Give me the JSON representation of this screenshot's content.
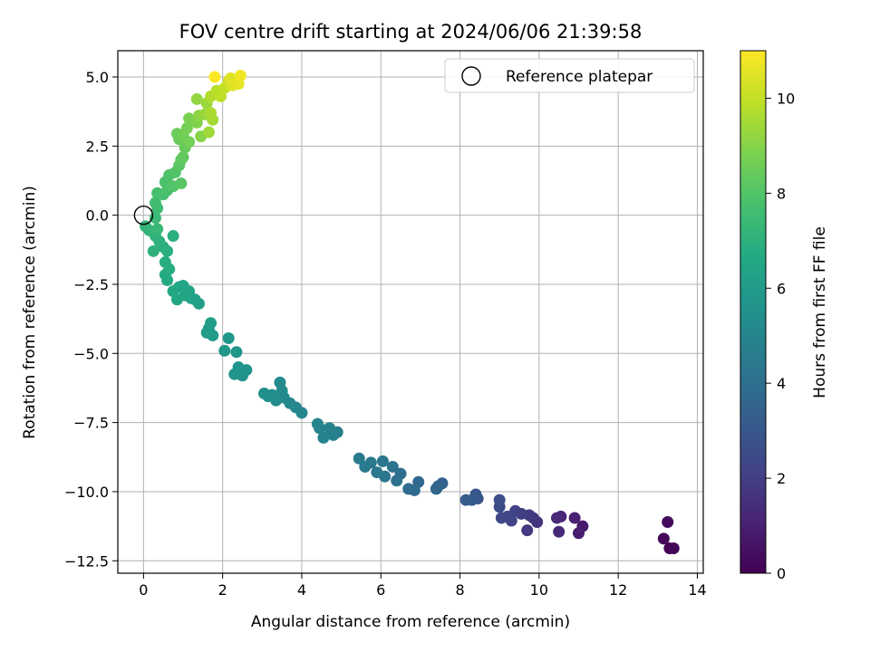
{
  "chart_data": {
    "type": "scatter",
    "title": "FOV centre drift starting at 2024/06/06 21:39:58",
    "xlabel": "Angular distance from reference (arcmin)",
    "ylabel": "Rotation from reference (arcmin)",
    "xlim": [
      -0.65,
      14.15
    ],
    "ylim": [
      -12.95,
      5.95
    ],
    "x_ticks": [
      0,
      2,
      4,
      6,
      8,
      10,
      12,
      14
    ],
    "x_tick_labels": [
      "0",
      "2",
      "4",
      "6",
      "8",
      "10",
      "12",
      "14"
    ],
    "y_ticks": [
      5,
      2.5,
      0,
      -2.5,
      -5,
      -7.5,
      -10,
      -12.5
    ],
    "y_tick_labels": [
      "5.0",
      "2.5",
      "0.0",
      "−2.5",
      "−5.0",
      "−7.5",
      "−10.0",
      "−12.5"
    ],
    "grid": true,
    "legend": {
      "position": "top-right",
      "entries": [
        "Reference platepar"
      ]
    },
    "reference_point": {
      "x": 0,
      "y": 0
    },
    "colorbar": {
      "label": "Hours from first FF file",
      "colormap": "viridis",
      "range": [
        0,
        11
      ],
      "ticks": [
        0,
        2,
        4,
        6,
        8,
        10
      ],
      "tick_labels": [
        "0",
        "2",
        "4",
        "6",
        "8",
        "10"
      ]
    },
    "points": [
      [
        13.3,
        -12.05,
        0.0
      ],
      [
        13.4,
        -12.05,
        0.1
      ],
      [
        13.15,
        -11.7,
        0.2
      ],
      [
        13.25,
        -11.1,
        0.3
      ],
      [
        11.1,
        -11.25,
        0.8
      ],
      [
        11.0,
        -11.5,
        0.9
      ],
      [
        10.9,
        -10.95,
        1.0
      ],
      [
        10.55,
        -10.9,
        1.1
      ],
      [
        10.5,
        -11.45,
        1.2
      ],
      [
        10.45,
        -10.95,
        1.3
      ],
      [
        9.95,
        -11.1,
        1.6
      ],
      [
        9.85,
        -10.95,
        1.7
      ],
      [
        9.7,
        -11.4,
        1.8
      ],
      [
        9.75,
        -10.85,
        1.9
      ],
      [
        9.55,
        -10.8,
        2.0
      ],
      [
        9.4,
        -10.7,
        2.1
      ],
      [
        9.3,
        -11.05,
        2.2
      ],
      [
        9.2,
        -10.9,
        2.3
      ],
      [
        9.05,
        -10.95,
        2.4
      ],
      [
        9.0,
        -10.55,
        2.5
      ],
      [
        9.0,
        -10.3,
        2.6
      ],
      [
        8.45,
        -10.25,
        2.9
      ],
      [
        8.4,
        -10.1,
        3.0
      ],
      [
        8.3,
        -10.3,
        3.1
      ],
      [
        8.15,
        -10.3,
        3.2
      ],
      [
        7.55,
        -9.7,
        3.4
      ],
      [
        7.45,
        -9.8,
        3.5
      ],
      [
        7.4,
        -9.9,
        3.6
      ],
      [
        6.95,
        -9.65,
        3.7
      ],
      [
        6.85,
        -9.95,
        3.8
      ],
      [
        6.7,
        -9.9,
        3.9
      ],
      [
        6.5,
        -9.35,
        4.0
      ],
      [
        6.4,
        -9.6,
        4.1
      ],
      [
        6.3,
        -9.1,
        4.2
      ],
      [
        6.1,
        -9.45,
        4.3
      ],
      [
        6.05,
        -8.9,
        4.35
      ],
      [
        5.9,
        -9.3,
        4.4
      ],
      [
        5.75,
        -8.95,
        4.45
      ],
      [
        5.6,
        -9.1,
        4.5
      ],
      [
        5.45,
        -8.8,
        4.55
      ],
      [
        4.9,
        -7.85,
        4.7
      ],
      [
        4.8,
        -7.95,
        4.75
      ],
      [
        4.7,
        -7.7,
        4.8
      ],
      [
        4.55,
        -8.05,
        4.85
      ],
      [
        4.45,
        -7.7,
        4.9
      ],
      [
        4.4,
        -7.55,
        4.95
      ],
      [
        4.0,
        -7.15,
        5.0
      ],
      [
        3.85,
        -6.95,
        5.05
      ],
      [
        3.7,
        -6.8,
        5.1
      ],
      [
        3.55,
        -6.6,
        5.15
      ],
      [
        3.5,
        -6.35,
        5.2
      ],
      [
        3.45,
        -6.05,
        5.25
      ],
      [
        3.35,
        -6.7,
        5.3
      ],
      [
        3.25,
        -6.5,
        5.35
      ],
      [
        3.15,
        -6.55,
        5.4
      ],
      [
        3.05,
        -6.45,
        5.45
      ],
      [
        2.6,
        -5.6,
        5.55
      ],
      [
        2.5,
        -5.8,
        5.6
      ],
      [
        2.4,
        -5.5,
        5.65
      ],
      [
        2.3,
        -5.75,
        5.7
      ],
      [
        2.35,
        -4.95,
        5.75
      ],
      [
        2.15,
        -4.45,
        5.8
      ],
      [
        2.05,
        -4.9,
        5.85
      ],
      [
        1.75,
        -4.35,
        5.95
      ],
      [
        1.65,
        -4.1,
        6.0
      ],
      [
        1.7,
        -3.9,
        6.05
      ],
      [
        1.6,
        -4.25,
        6.1
      ],
      [
        1.4,
        -3.2,
        6.2
      ],
      [
        1.3,
        -3.05,
        6.25
      ],
      [
        1.2,
        -3.0,
        6.3
      ],
      [
        1.15,
        -2.75,
        6.35
      ],
      [
        1.05,
        -2.9,
        6.4
      ],
      [
        1.0,
        -2.55,
        6.45
      ],
      [
        0.9,
        -2.6,
        6.5
      ],
      [
        0.85,
        -3.05,
        6.55
      ],
      [
        0.75,
        -2.75,
        6.6
      ],
      [
        0.6,
        -2.35,
        6.65
      ],
      [
        0.55,
        -2.15,
        6.7
      ],
      [
        0.65,
        -1.95,
        6.75
      ],
      [
        0.55,
        -1.7,
        6.8
      ],
      [
        0.6,
        -1.3,
        6.85
      ],
      [
        0.75,
        -0.75,
        6.9
      ],
      [
        0.5,
        -1.15,
        6.95
      ],
      [
        0.4,
        -0.95,
        7.0
      ],
      [
        0.25,
        -1.3,
        7.05
      ],
      [
        0.3,
        -0.75,
        7.1
      ],
      [
        0.15,
        -0.55,
        7.15
      ],
      [
        0.05,
        -0.4,
        7.2
      ],
      [
        0.35,
        -0.5,
        7.3
      ],
      [
        0.3,
        -0.1,
        7.4
      ],
      [
        0.35,
        0.25,
        7.5
      ],
      [
        0.3,
        0.45,
        7.6
      ],
      [
        0.35,
        0.8,
        7.7
      ],
      [
        0.5,
        0.75,
        7.75
      ],
      [
        0.6,
        0.9,
        7.8
      ],
      [
        0.55,
        1.2,
        7.85
      ],
      [
        0.65,
        1.45,
        7.9
      ],
      [
        0.8,
        1.55,
        7.95
      ],
      [
        0.75,
        1.05,
        8.0
      ],
      [
        0.95,
        1.15,
        8.1
      ],
      [
        0.9,
        1.8,
        8.15
      ],
      [
        0.95,
        2.0,
        8.2
      ],
      [
        1.0,
        2.1,
        8.3
      ],
      [
        1.05,
        2.45,
        8.4
      ],
      [
        0.9,
        2.75,
        8.45
      ],
      [
        0.85,
        2.95,
        8.5
      ],
      [
        1.0,
        2.9,
        8.6
      ],
      [
        1.15,
        2.65,
        8.65
      ],
      [
        1.1,
        3.15,
        8.7
      ],
      [
        1.15,
        3.5,
        8.8
      ],
      [
        1.35,
        3.35,
        8.9
      ],
      [
        1.45,
        2.85,
        9.0
      ],
      [
        1.4,
        3.6,
        9.1
      ],
      [
        1.35,
        4.2,
        9.2
      ],
      [
        1.55,
        3.65,
        9.3
      ],
      [
        1.6,
        4.05,
        9.35
      ],
      [
        1.65,
        3.0,
        9.4
      ],
      [
        1.75,
        3.45,
        9.5
      ],
      [
        1.7,
        3.7,
        9.6
      ],
      [
        1.7,
        4.3,
        9.7
      ],
      [
        1.85,
        4.5,
        9.8
      ],
      [
        1.95,
        4.3,
        9.9
      ],
      [
        2.05,
        4.6,
        10.0
      ],
      [
        2.15,
        4.85,
        10.2
      ],
      [
        2.25,
        4.7,
        10.4
      ],
      [
        2.2,
        4.95,
        10.5
      ],
      [
        2.4,
        4.75,
        10.6
      ],
      [
        2.45,
        5.05,
        10.8
      ],
      [
        1.8,
        5.0,
        11.0
      ]
    ]
  }
}
